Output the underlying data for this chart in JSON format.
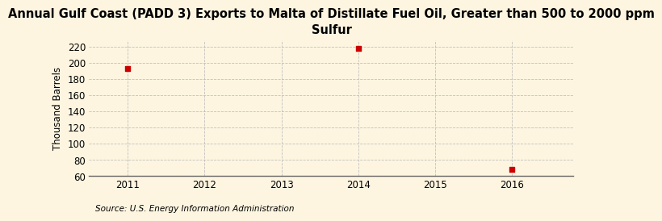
{
  "title": "Annual Gulf Coast (PADD 3) Exports to Malta of Distillate Fuel Oil, Greater than 500 to 2000 ppm\nSulfur",
  "ylabel": "Thousand Barrels",
  "source": "Source: U.S. Energy Information Administration",
  "x_values": [
    2011,
    2014,
    2016
  ],
  "y_values": [
    193,
    218,
    68
  ],
  "marker_color": "#cc0000",
  "marker_size": 4,
  "xlim": [
    2010.5,
    2016.8
  ],
  "ylim": [
    60,
    228
  ],
  "yticks": [
    60,
    80,
    100,
    120,
    140,
    160,
    180,
    200,
    220
  ],
  "xticks": [
    2011,
    2012,
    2013,
    2014,
    2015,
    2016
  ],
  "background_color": "#fdf5e0",
  "grid_color": "#bbbbbb",
  "title_fontsize": 10.5,
  "label_fontsize": 8.5,
  "tick_fontsize": 8.5,
  "source_fontsize": 7.5
}
